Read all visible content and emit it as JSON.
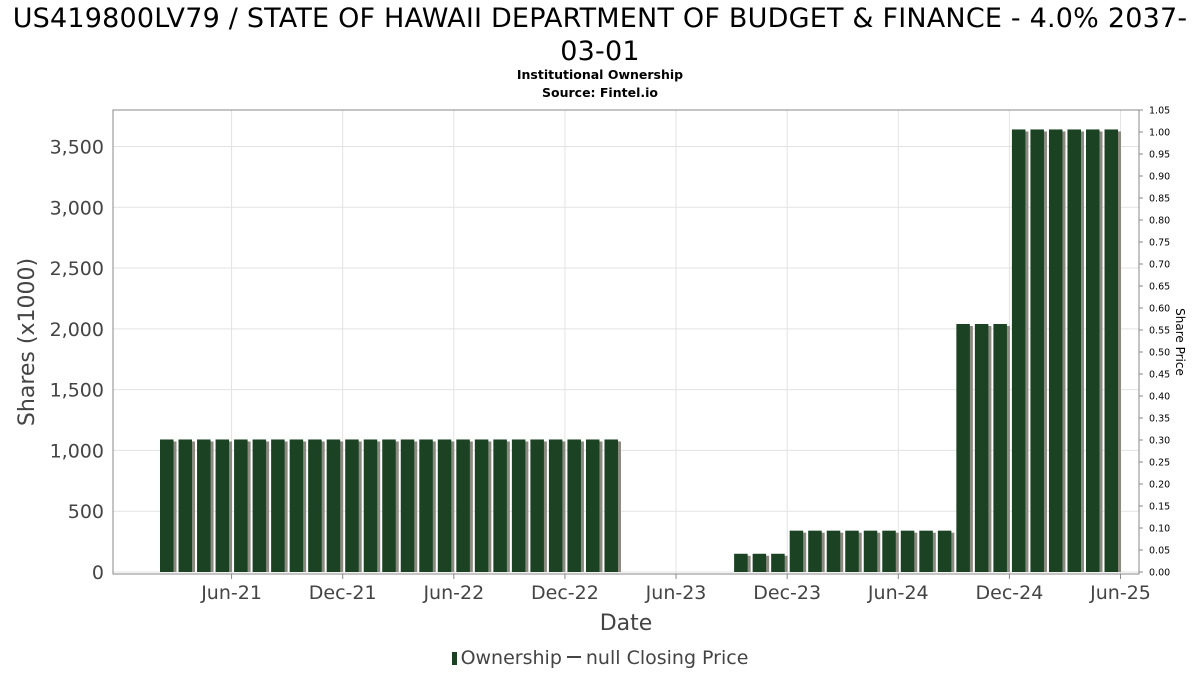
{
  "chart_data": {
    "type": "bar",
    "title": "US419800LV79 / STATE OF HAWAII DEPARTMENT OF BUDGET & FINANCE - 4.0% 2037-03-01",
    "subtitle": "Institutional Ownership",
    "source": "Source: Fintel.io",
    "xlabel": "Date",
    "ylabel": "Shares (x1000)",
    "y2label": "Share Price",
    "ylim": [
      0,
      3800
    ],
    "y2lim": [
      0,
      1.05
    ],
    "y_ticks": [
      "0",
      "500",
      "1,000",
      "1,500",
      "2,000",
      "2,500",
      "3,000",
      "3,500"
    ],
    "y_tick_values": [
      0,
      500,
      1000,
      1500,
      2000,
      2500,
      3000,
      3500
    ],
    "y2_ticks": [
      "0.00",
      "0.05",
      "0.10",
      "0.15",
      "0.20",
      "0.25",
      "0.30",
      "0.35",
      "0.40",
      "0.45",
      "0.50",
      "0.55",
      "0.60",
      "0.65",
      "0.70",
      "0.75",
      "0.80",
      "0.85",
      "0.90",
      "0.95",
      "1.00",
      "1.05"
    ],
    "y2_tick_values": [
      0,
      0.05,
      0.1,
      0.15,
      0.2,
      0.25,
      0.3,
      0.35,
      0.4,
      0.45,
      0.5,
      0.55,
      0.6,
      0.65,
      0.7,
      0.75,
      0.8,
      0.85,
      0.9,
      0.95,
      1.0,
      1.05
    ],
    "x_ticks": [
      "Jun-21",
      "Dec-21",
      "Jun-22",
      "Dec-22",
      "Jun-23",
      "Dec-23",
      "Jun-24",
      "Dec-24",
      "Jun-25"
    ],
    "x_tick_index": [
      4,
      10,
      16,
      22,
      28,
      34,
      40,
      46,
      52
    ],
    "grid": true,
    "legend": "bottom",
    "series": [
      {
        "name": "Ownership",
        "color": "#1b4223",
        "start_index": 0,
        "values": [
          1090,
          1090,
          1090,
          1090,
          1090,
          1090,
          1090,
          1090,
          1090,
          1090,
          1090,
          1090,
          1090,
          1090,
          1090,
          1090,
          1090,
          1090,
          1090,
          1090,
          1090,
          1090,
          1090,
          1090,
          1090,
          0,
          0,
          0,
          0,
          0,
          0,
          150,
          150,
          150,
          340,
          340,
          340,
          340,
          340,
          340,
          340,
          340,
          340,
          2040,
          2040,
          2040,
          3640,
          3640,
          3640,
          3640,
          3640,
          3640
        ]
      },
      {
        "name": "null Closing Price",
        "color": "#444444",
        "values": []
      }
    ]
  }
}
